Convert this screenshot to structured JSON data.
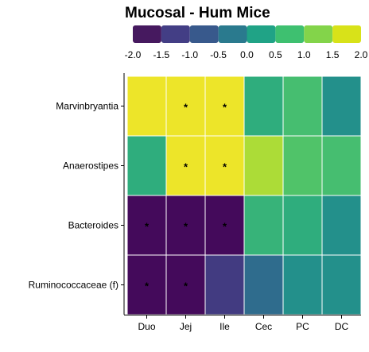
{
  "chart_data": {
    "type": "heatmap",
    "title": "Mucosal - Hum Mice",
    "xlabel": "",
    "ylabel": "",
    "columns": [
      "Duo",
      "Jej",
      "Ile",
      "Cec",
      "PC",
      "DC"
    ],
    "rows": [
      "Marvinbryantia",
      "Anaerostipes",
      "Bacteroides",
      "Ruminococcaceae (f)"
    ],
    "values": [
      [
        1.9,
        1.9,
        1.9,
        0.5,
        0.8,
        0.0
      ],
      [
        0.5,
        1.9,
        1.9,
        1.5,
        0.9,
        0.8
      ],
      [
        -1.9,
        -1.9,
        -1.9,
        0.6,
        0.5,
        0.0
      ],
      [
        -1.9,
        -1.9,
        -1.3,
        -0.6,
        0.0,
        0.0
      ]
    ],
    "significance": [
      [
        false,
        true,
        true,
        false,
        false,
        false
      ],
      [
        false,
        true,
        true,
        false,
        false,
        false
      ],
      [
        true,
        true,
        true,
        false,
        false,
        false
      ],
      [
        true,
        true,
        false,
        false,
        false,
        false
      ]
    ],
    "significance_marker": "*",
    "colorscale": {
      "name": "viridis",
      "min": -2.0,
      "max": 2.0,
      "colors": [
        "#440154",
        "#46327e",
        "#365c8d",
        "#277f8e",
        "#1fa187",
        "#4ac16d",
        "#a0da39",
        "#fde725"
      ]
    },
    "legend": {
      "position": "top",
      "bins": [
        -2.0,
        -1.5,
        -1.0,
        -0.5,
        0.0,
        0.5,
        1.0,
        1.5,
        2.0
      ],
      "colors": [
        "#46195f",
        "#433e85",
        "#38598c",
        "#2a7a8e",
        "#20a386",
        "#3ec070",
        "#83d44a",
        "#d8e219"
      ],
      "tick_labels": [
        "-2.0",
        "-1.5",
        "-1.0",
        "-0.5",
        "0.0",
        "0.5",
        "1.0",
        "1.5",
        "2.0"
      ]
    }
  }
}
